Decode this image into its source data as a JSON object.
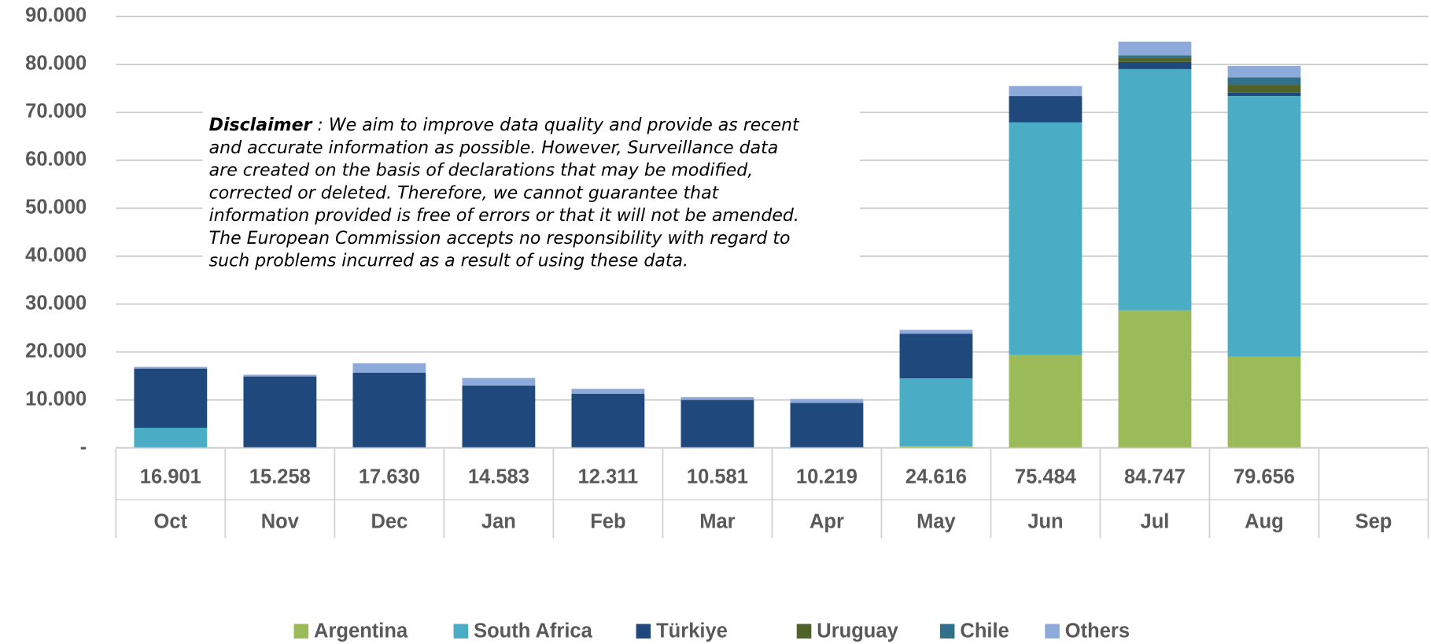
{
  "chart_data": {
    "type": "stacked_bar",
    "categories": [
      "Oct",
      "Nov",
      "Dec",
      "Jan",
      "Feb",
      "Mar",
      "Apr",
      "May",
      "Jun",
      "Jul",
      "Aug",
      "Sep"
    ],
    "series": [
      {
        "name": "Argentina",
        "color": "#9bbb59",
        "values": [
          0,
          0,
          0,
          0,
          0,
          0,
          0,
          400,
          19400,
          28700,
          19000,
          null
        ]
      },
      {
        "name": "South Africa",
        "color": "#4bacc6",
        "values": [
          4200,
          0,
          0,
          0,
          0,
          0,
          0,
          14100,
          48500,
          50300,
          54400,
          null
        ]
      },
      {
        "name": "Türkiye",
        "color": "#1f497d",
        "values": [
          12350,
          14900,
          15700,
          13000,
          11300,
          10000,
          9400,
          9300,
          5500,
          1500,
          700,
          null
        ]
      },
      {
        "name": "Uruguay",
        "color": "#4f6228",
        "values": [
          0,
          0,
          0,
          0,
          0,
          0,
          0,
          0,
          0,
          800,
          1600,
          null
        ]
      },
      {
        "name": "Chile",
        "color": "#31708a",
        "values": [
          0,
          0,
          0,
          0,
          0,
          0,
          0,
          0,
          0,
          600,
          1600,
          null
        ]
      },
      {
        "name": "Others",
        "color": "#8eaadb",
        "values": [
          351,
          358,
          1930,
          1583,
          1011,
          581,
          819,
          816,
          2084,
          2847,
          2356,
          null
        ]
      }
    ],
    "totals": {
      "values": [
        16901,
        15258,
        17630,
        14583,
        12311,
        10581,
        10219,
        24616,
        75484,
        84747,
        79656,
        null
      ],
      "value_labels": [
        "16.901",
        "15.258",
        "17.630",
        "14.583",
        "12.311",
        "10.581",
        "10.219",
        "24.616",
        "75.484",
        "84.747",
        "79.656",
        null
      ]
    },
    "ylim": [
      0,
      90000
    ],
    "yticks": [
      {
        "value": 0,
        "label": "-"
      },
      {
        "value": 10000,
        "label": "10.000"
      },
      {
        "value": 20000,
        "label": "20.000"
      },
      {
        "value": 30000,
        "label": "30.000"
      },
      {
        "value": 40000,
        "label": "40.000"
      },
      {
        "value": 50000,
        "label": "50.000"
      },
      {
        "value": 60000,
        "label": "60.000"
      },
      {
        "value": 70000,
        "label": "70.000"
      },
      {
        "value": 80000,
        "label": "80.000"
      },
      {
        "value": 90000,
        "label": "90.000"
      }
    ],
    "grid": true,
    "legend": "bottom",
    "disclaimer": {
      "label": "Disclaimer",
      "lines": [
        " : We aim to improve data quality and provide as recent",
        "and accurate information as possible. However, Surveillance data",
        "are created on the basis of declarations that may be modified,",
        "corrected or deleted. Therefore, we cannot guarantee that",
        "information provided is free of errors or that it will not be amended.",
        "The European Commission accepts no responsibility with regard to",
        "such problems incurred as a result of using these data."
      ]
    }
  }
}
